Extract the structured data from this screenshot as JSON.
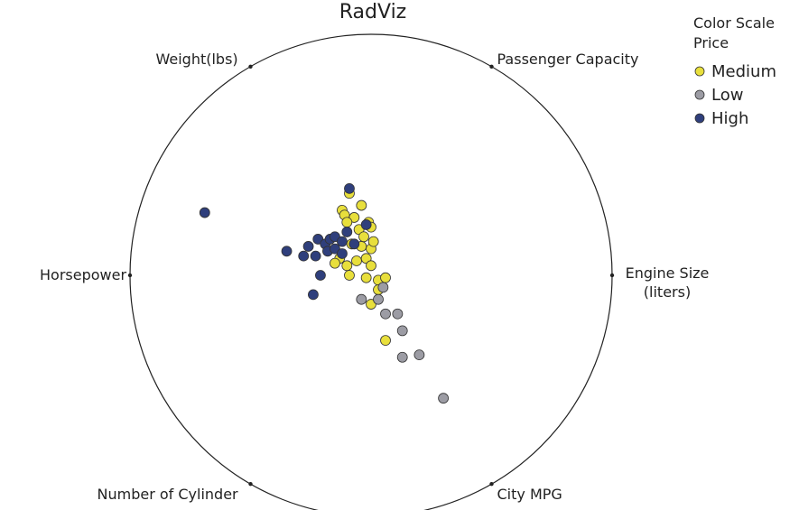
{
  "chart_data": {
    "type": "radviz",
    "title": "RadViz",
    "anchors": [
      "Engine Size (liters)",
      "Passenger Capacity",
      "Weight(lbs)",
      "Horsepower",
      "Number of Cylinder",
      "City MPG"
    ],
    "legend_title": "Color Scale",
    "legend_subtitle": "Price",
    "series": [
      {
        "name": "Medium",
        "color": "#e8df3c",
        "x": [
          -0.09,
          -0.12,
          -0.11,
          -0.07,
          -0.04,
          -0.01,
          0.0,
          -0.05,
          -0.1,
          -0.08,
          -0.04,
          0.0,
          0.01,
          -0.13,
          -0.1,
          -0.06,
          -0.02,
          0.0,
          -0.15,
          -0.09,
          -0.02,
          0.03,
          0.06,
          0.03,
          0.0,
          0.06,
          -0.03
        ],
        "y": [
          0.34,
          0.27,
          0.25,
          0.24,
          0.29,
          0.22,
          0.2,
          0.19,
          0.22,
          0.13,
          0.12,
          0.11,
          0.14,
          0.07,
          0.04,
          0.06,
          0.07,
          0.04,
          0.05,
          0.0,
          -0.01,
          -0.02,
          -0.01,
          -0.06,
          -0.12,
          -0.27,
          0.16
        ]
      },
      {
        "name": "Low",
        "color": "#9c9ca4",
        "x": [
          -0.04,
          0.03,
          0.05,
          0.06,
          0.11,
          0.13,
          0.13,
          0.2,
          0.3
        ],
        "y": [
          -0.1,
          -0.1,
          -0.05,
          -0.16,
          -0.16,
          -0.23,
          -0.34,
          -0.33,
          -0.51
        ]
      },
      {
        "name": "High",
        "color": "#2f3f7c",
        "x": [
          -0.09,
          -0.69,
          -0.35,
          -0.28,
          -0.23,
          -0.22,
          -0.19,
          -0.17,
          -0.15,
          -0.12,
          -0.1,
          -0.21,
          -0.24,
          -0.18,
          -0.15,
          -0.12,
          -0.07,
          -0.02,
          -0.26
        ],
        "y": [
          0.36,
          0.26,
          0.1,
          0.08,
          0.08,
          0.15,
          0.13,
          0.15,
          0.16,
          0.14,
          0.18,
          0.0,
          -0.08,
          0.1,
          0.11,
          0.09,
          0.13,
          0.21,
          0.12
        ]
      }
    ]
  }
}
